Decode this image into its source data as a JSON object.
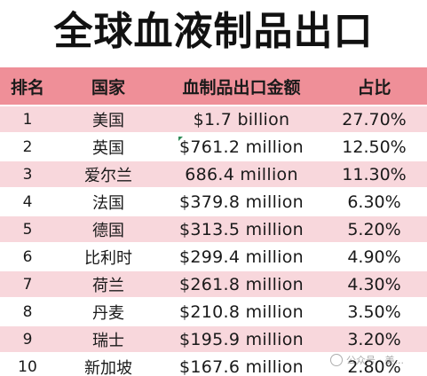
{
  "title": "全球血液制品出口",
  "table": {
    "headers": [
      "排名",
      "国家",
      "血制品出口金额",
      "占比"
    ],
    "rows": [
      {
        "rank": "1",
        "country": "美国",
        "amount": "$1.7 billion",
        "share": "27.70%"
      },
      {
        "rank": "2",
        "country": "英国",
        "amount": "$761.2 million",
        "share": "12.50%"
      },
      {
        "rank": "3",
        "country": "爱尔兰",
        "amount": "686.4 million",
        "share": "11.30%"
      },
      {
        "rank": "4",
        "country": "法国",
        "amount": "$379.8 million",
        "share": "6.30%"
      },
      {
        "rank": "5",
        "country": "德国",
        "amount": "$313.5 million",
        "share": "5.20%"
      },
      {
        "rank": "6",
        "country": "比利时",
        "amount": "$299.4 million",
        "share": "4.90%"
      },
      {
        "rank": "7",
        "country": "荷兰",
        "amount": "$261.8 million",
        "share": "4.30%"
      },
      {
        "rank": "8",
        "country": "丹麦",
        "amount": "$210.8 million",
        "share": "3.50%"
      },
      {
        "rank": "9",
        "country": "瑞士",
        "amount": "$195.9 million",
        "share": "3.20%"
      },
      {
        "rank": "10",
        "country": "新加坡",
        "amount": "$167.6 million",
        "share": "2.80%"
      }
    ]
  },
  "watermark": "公众号 · 美..."
}
